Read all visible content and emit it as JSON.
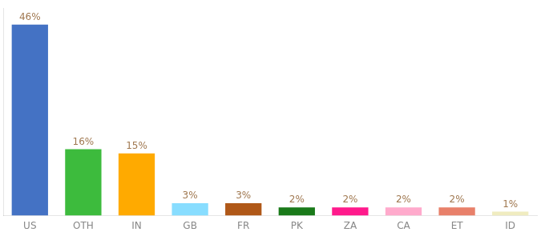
{
  "chart_data": {
    "type": "bar",
    "categories": [
      "US",
      "OTH",
      "IN",
      "GB",
      "FR",
      "PK",
      "ZA",
      "CA",
      "ET",
      "ID"
    ],
    "values": [
      46,
      16,
      15,
      3,
      3,
      2,
      2,
      2,
      2,
      1
    ],
    "value_labels": [
      "46%",
      "16%",
      "15%",
      "3%",
      "3%",
      "2%",
      "2%",
      "2%",
      "2%",
      "1%"
    ],
    "colors": [
      "#4472c4",
      "#3dbb3d",
      "#ffaa00",
      "#88ddff",
      "#b05818",
      "#1a7a1a",
      "#ff1a8c",
      "#ffaacc",
      "#e8806a",
      "#f0ecc0"
    ],
    "ylim": [
      0,
      50
    ],
    "grid": false,
    "data_labels": true,
    "tick_labels": "x"
  }
}
